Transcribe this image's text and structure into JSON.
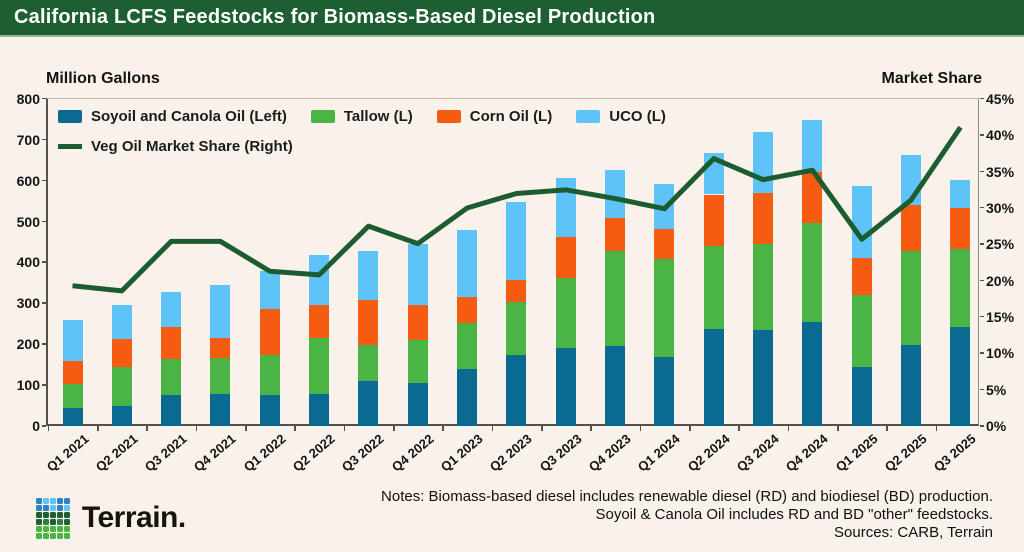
{
  "title": "California LCFS Feedstocks for Biomass-Based Diesel Production",
  "left_axis_header": "Million Gallons",
  "right_axis_header": "Market Share",
  "legend": {
    "bar_items": [
      {
        "label": "Soyoil and Canola Oil (Left)",
        "color": "#0a6a91"
      },
      {
        "label": "Tallow (L)",
        "color": "#4ab445"
      },
      {
        "label": "Corn Oil (L)",
        "color": "#f55b11"
      },
      {
        "label": "UCO (L)",
        "color": "#5ec4f7"
      }
    ],
    "line_item": {
      "label": "Veg Oil Market Share (Right)",
      "color": "#1d5c31"
    }
  },
  "chart_data": {
    "type": "stacked-bar+line",
    "categories": [
      "Q1 2021",
      "Q2 2021",
      "Q3 2021",
      "Q4 2021",
      "Q1 2022",
      "Q2 2022",
      "Q3 2022",
      "Q4 2022",
      "Q1 2023",
      "Q2 2023",
      "Q3 2023",
      "Q4 2023",
      "Q1 2024",
      "Q2 2024",
      "Q3 2024",
      "Q4 2024",
      "Q1 2025",
      "Q2 2025",
      "Q3 2025"
    ],
    "series": [
      {
        "name": "Soyoil and Canola Oil (Left)",
        "color": "#0a6a91",
        "values": [
          45,
          49,
          76,
          78,
          76,
          78,
          110,
          106,
          139,
          174,
          191,
          195,
          168,
          236,
          235,
          254,
          144,
          199,
          242
        ]
      },
      {
        "name": "Tallow (L)",
        "color": "#4ab445",
        "values": [
          57,
          96,
          88,
          88,
          98,
          136,
          88,
          105,
          113,
          128,
          172,
          234,
          241,
          205,
          209,
          242,
          177,
          228,
          191
        ]
      },
      {
        "name": "Corn Oil (L)",
        "color": "#f55b11",
        "values": [
          58,
          68,
          78,
          49,
          113,
          82,
          110,
          84,
          64,
          55,
          99,
          80,
          73,
          125,
          126,
          124,
          90,
          113,
          99
        ]
      },
      {
        "name": "UCO (L)",
        "color": "#5ec4f7",
        "values": [
          99,
          83,
          86,
          130,
          93,
          121,
          119,
          151,
          162,
          190,
          144,
          117,
          109,
          101,
          148,
          127,
          177,
          123,
          70
        ]
      }
    ],
    "line_series": {
      "name": "Veg Oil Market Share (Right)",
      "color": "#1d5c31",
      "values": [
        19.3,
        18.6,
        25.4,
        25.4,
        21.3,
        20.8,
        27.5,
        25.1,
        30.0,
        32.0,
        32.5,
        31.3,
        29.9,
        36.8,
        33.9,
        35.2,
        25.7,
        31.1,
        41.1
      ]
    },
    "left_axis": {
      "label": "Million Gallons",
      "min": 0,
      "max": 800,
      "ticks": [
        0,
        100,
        200,
        300,
        400,
        500,
        600,
        700,
        800
      ]
    },
    "right_axis": {
      "label": "Market Share",
      "min": 0,
      "max": 45,
      "ticks": [
        0,
        5,
        10,
        15,
        20,
        25,
        30,
        35,
        40,
        45
      ],
      "unit": "%"
    },
    "grid": false,
    "legend_position": "top-left-inside"
  },
  "footer": {
    "brand": "Terrain.",
    "notes": [
      "Notes: Biomass-based diesel includes renewable diesel (RD) and biodiesel (BD) production.",
      "Soyoil & Canola Oil includes RD and BD \"other\" feedstocks.",
      "Sources: CARB, Terrain"
    ],
    "logo_grid": [
      [
        "#2f81c4",
        "#5ec3f7",
        "#5ec3f7",
        "#2f81c4",
        "#2f81c4"
      ],
      [
        "#2f81c4",
        "#2f81c4",
        "#5ec3f7",
        "#2f81c4",
        "#5ec3f7"
      ],
      [
        "#1d5f33",
        "#1d5f33",
        "#1d5f33",
        "#1d5f33",
        "#1d5f33"
      ],
      [
        "#1d5f33",
        "#2e7d42",
        "#1d5f33",
        "#2e7d42",
        "#1d5f33"
      ],
      [
        "#4ab445",
        "#4ab445",
        "#4ab445",
        "#4ab445",
        "#4ab445"
      ],
      [
        "#4ab445",
        "#4ab445",
        "#4ab445",
        "#4ab445",
        "#4ab445"
      ]
    ]
  }
}
